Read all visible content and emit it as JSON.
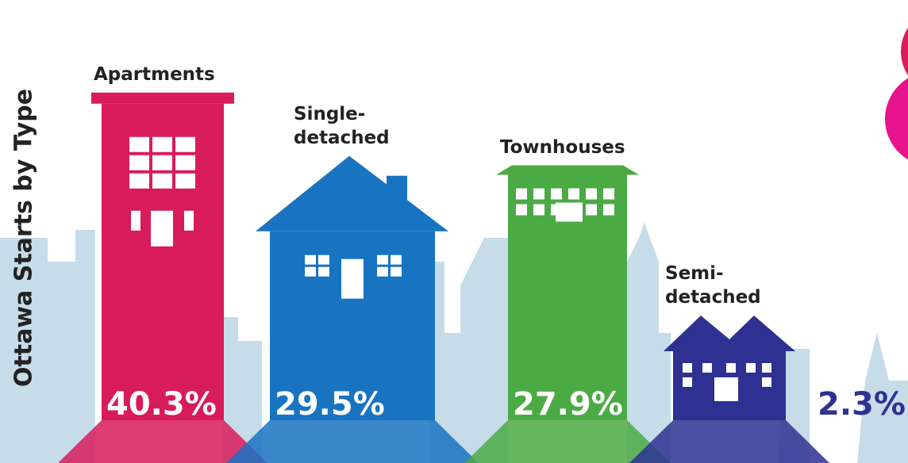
{
  "chart_data": {
    "type": "pictorial-bar",
    "title": "Ottawa Starts by Type",
    "categories": [
      "Apartments",
      "Single-detached",
      "Townhouses",
      "Semi-detached"
    ],
    "values": [
      40.3,
      29.5,
      27.9,
      2.3
    ],
    "value_labels": [
      "40.3%",
      "29.5%",
      "27.9%",
      "2.3%"
    ],
    "colors": [
      "#d81b5a",
      "#1873c1",
      "#4caa45",
      "#2e3192"
    ]
  }
}
